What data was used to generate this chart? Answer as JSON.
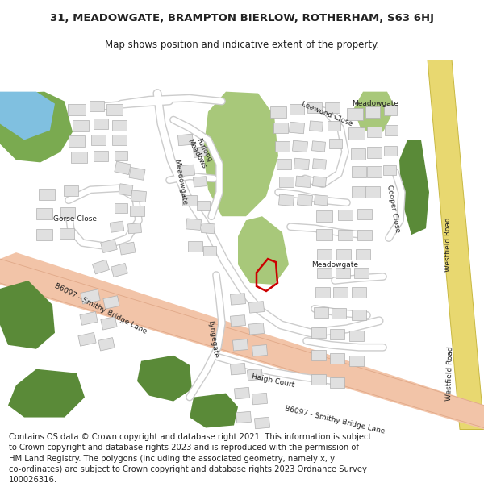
{
  "title_line1": "31, MEADOWGATE, BRAMPTON BIERLOW, ROTHERHAM, S63 6HJ",
  "title_line2": "Map shows position and indicative extent of the property.",
  "footer": "Contains OS data © Crown copyright and database right 2021. This information is subject to Crown copyright and database rights 2023 and is reproduced with the permission of HM Land Registry. The polygons (including the associated geometry, namely x, y co-ordinates) are subject to Crown copyright and database rights 2023 Ordnance Survey 100026316.",
  "map_bg": "#ffffff",
  "road_salmon": "#f2c4a8",
  "road_salmon_edge": "#e0a888",
  "road_yellow": "#e8d870",
  "road_yellow_edge": "#c8b840",
  "green_light": "#a8c87a",
  "green_mid": "#7aaa50",
  "green_dark": "#5a8a38",
  "water_blue": "#80c0e0",
  "building_fill": "#e0e0e0",
  "building_edge": "#b0b0b0",
  "road_white": "#ffffff",
  "road_grey": "#cccccc",
  "plot_red": "#cc0000",
  "text_dark": "#222222",
  "text_grey": "#555555"
}
